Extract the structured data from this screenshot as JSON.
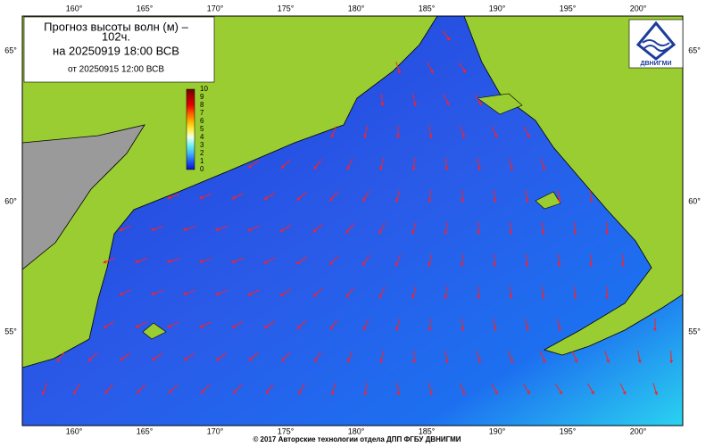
{
  "title_lines": [
    "Прогноз высоты волн (м) –",
    "102ч."
  ],
  "forecast": "на 20250919 18:00 ВСВ",
  "issued": "от 20250915 12:00 ВСВ",
  "colorbar": {
    "ticks": [
      0,
      1,
      2,
      3,
      4,
      5,
      6,
      7,
      8,
      9,
      10
    ]
  },
  "longitudes": [
    "160°",
    "165°",
    "170°",
    "175°",
    "180°",
    "185°",
    "190°",
    "195°",
    "200°"
  ],
  "latitudes": [
    "65°",
    "60°",
    "55°"
  ],
  "logo": "ДВНИГМИ",
  "footer": "© 2017 Авторские технологии отдела ДПП ФГБУ ДВНИГМИ"
}
